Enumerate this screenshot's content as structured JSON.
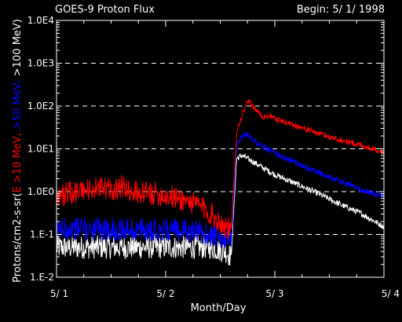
{
  "chart_data": {
    "type": "line",
    "title": "GOES-9 Proton Flux",
    "subtitle": "Begin: 5/ 1/ 1998",
    "xlabel": "Month/Day",
    "ylabel_parts": [
      "Protons/cm2-s-sr(",
      "E >10 MeV, ",
      ">50 MeV, ",
      ">100 MeV",
      ")"
    ],
    "ylabel_colors": [
      "#ffffff",
      "#ff0000",
      "#0000ff",
      "#ffffff",
      "#ffffff"
    ],
    "y_scale": "log",
    "ylim": [
      0.01,
      10000
    ],
    "xlim": [
      0,
      3
    ],
    "x_ticks": [
      0,
      1,
      2,
      3
    ],
    "x_tick_labels": [
      "5/ 1",
      "5/ 2",
      "5/ 3",
      "5/ 4"
    ],
    "y_ticks": [
      0.01,
      0.1,
      1,
      10,
      100,
      1000,
      10000
    ],
    "y_tick_labels": [
      "1.E-2",
      "1.E-1",
      "1.0E0",
      "1.0E1",
      "1.0E2",
      "1.0E3",
      "1.0E4"
    ],
    "grid": "dashed horizontal at 0.1, 1, 10, 100, 1000",
    "series": [
      {
        "name": ">10 MeV",
        "color": "#ff0000",
        "x": [
          0.0,
          0.1,
          0.2,
          0.3,
          0.4,
          0.5,
          0.6,
          0.7,
          0.8,
          0.9,
          1.0,
          1.1,
          1.2,
          1.3,
          1.35,
          1.45,
          1.55,
          1.6,
          1.65,
          1.7,
          1.75,
          1.8,
          1.85,
          1.9,
          1.95,
          2.0,
          2.1,
          2.2,
          2.3,
          2.4,
          2.5,
          2.6,
          2.7,
          2.8,
          2.9,
          3.0
        ],
        "y": [
          0.8,
          0.9,
          1.0,
          1.1,
          1.2,
          1.1,
          1.3,
          1.0,
          0.9,
          0.9,
          0.8,
          0.7,
          0.6,
          0.5,
          0.4,
          0.25,
          0.15,
          0.12,
          25,
          60,
          130,
          100,
          70,
          55,
          60,
          50,
          42,
          34,
          28,
          23,
          19,
          16,
          14,
          12,
          10,
          8.5
        ]
      },
      {
        "name": ">50 MeV",
        "color": "#0000ff",
        "x": [
          0.0,
          0.2,
          0.4,
          0.6,
          0.8,
          1.0,
          1.2,
          1.4,
          1.55,
          1.6,
          1.65,
          1.7,
          1.75,
          1.8,
          1.9,
          2.0,
          2.1,
          2.2,
          2.3,
          2.4,
          2.5,
          2.6,
          2.7,
          2.8,
          2.9,
          3.0
        ],
        "y": [
          0.13,
          0.14,
          0.13,
          0.13,
          0.13,
          0.13,
          0.12,
          0.1,
          0.07,
          0.06,
          12,
          20,
          22,
          16,
          11,
          8,
          6,
          4.5,
          3.5,
          2.8,
          2.2,
          1.7,
          1.4,
          1.1,
          0.9,
          0.8
        ]
      },
      {
        "name": ">100 MeV",
        "color": "#ffffff",
        "x": [
          0.0,
          0.2,
          0.4,
          0.6,
          0.8,
          1.0,
          1.2,
          1.4,
          1.55,
          1.6,
          1.65,
          1.7,
          1.8,
          1.9,
          2.0,
          2.2,
          2.4,
          2.6,
          2.8,
          3.0
        ],
        "y": [
          0.05,
          0.05,
          0.05,
          0.05,
          0.05,
          0.05,
          0.05,
          0.05,
          0.04,
          0.03,
          6,
          7,
          5,
          3.5,
          2.5,
          1.5,
          0.9,
          0.5,
          0.3,
          0.15
        ]
      }
    ]
  }
}
